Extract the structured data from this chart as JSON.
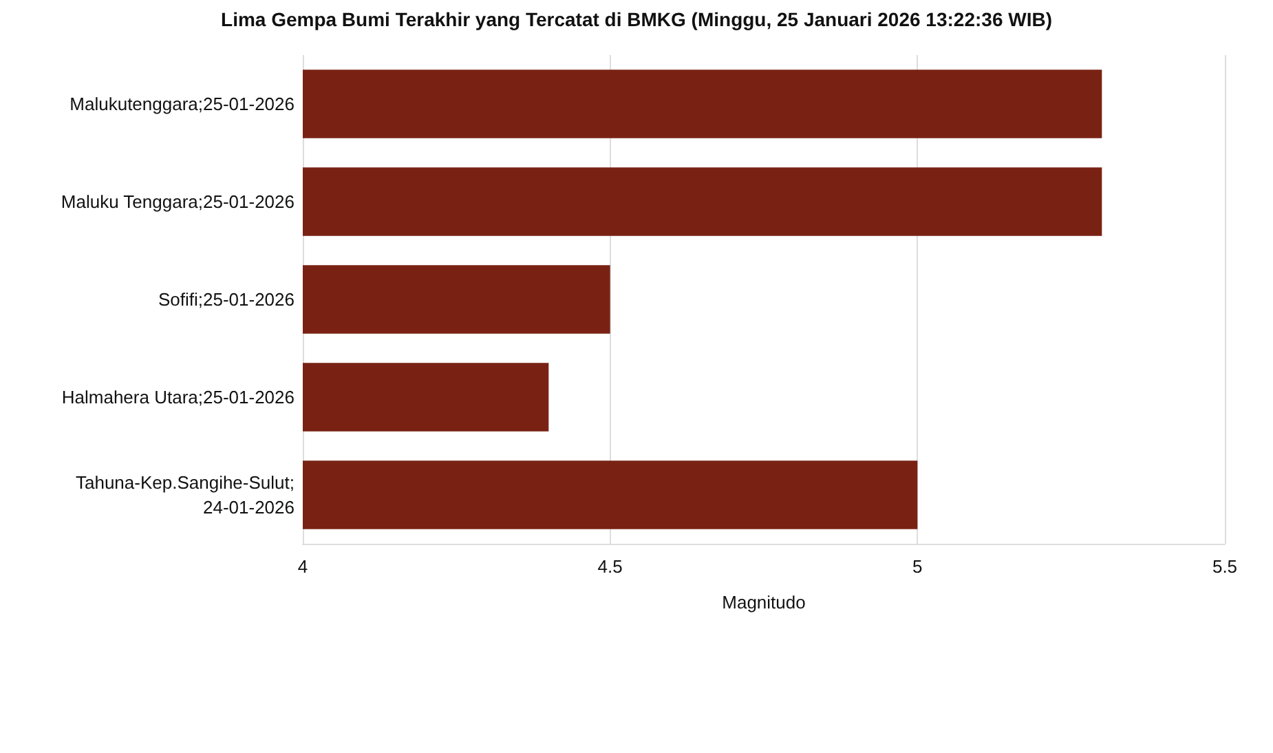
{
  "chart_data": {
    "type": "bar",
    "orientation": "horizontal",
    "title": "Lima Gempa Bumi Terakhir yang Tercatat di BMKG (Minggu, 25 Januari 2026 13:22:36 WIB)",
    "xlabel": "Magnitudo",
    "categories": [
      "Malukutenggara;25-01-2026",
      "Maluku Tenggara;25-01-2026",
      "Sofifi;25-01-2026",
      "Halmahera Utara;25-01-2026",
      "Tahuna-Kep.Sangihe-Sulut;24-01-2026"
    ],
    "values": [
      5.3,
      5.3,
      4.5,
      4.4,
      5.0
    ],
    "color": "#792214",
    "xlim": [
      4,
      5.5
    ],
    "xticks": [
      4,
      4.5,
      5,
      5.5
    ],
    "grid": "x"
  }
}
